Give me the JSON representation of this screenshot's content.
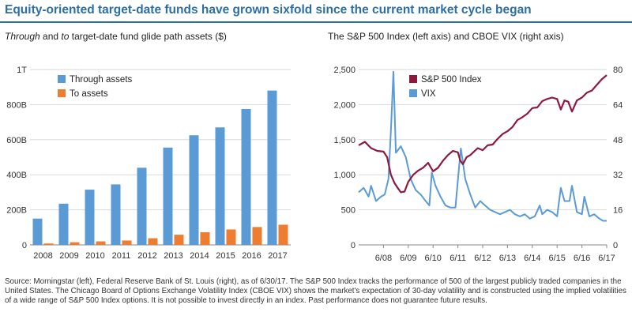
{
  "title": "Equity-oriented target-date funds have grown sixfold since the current market cycle began",
  "left_subtitle": {
    "em1": "Through",
    "mid": " and ",
    "em2": "to",
    "rest": " target-date fund glide path assets ($)"
  },
  "right_subtitle": "The S&P 500 Index (left axis) and CBOE VIX (right axis)",
  "footnote": "Source: Morningstar (left), Federal Reserve Bank of St. Louis (right), as of 6/30/17. The S&P 500 Index tracks the performance of 500 of the largest publicly traded companies in the United States. The Chicago Board of Options Exchange Volatility Index (CBOE VIX) shows the market's expectation of 30-day volatility and is constructed using the implied volatilities of a wide range of S&P 500 Index options. It is not possible to invest directly in an index. Past performance does not guarantee future results.",
  "colors": {
    "through": "#5b9bd5",
    "to": "#ed7d31",
    "sp500": "#8b1a3e",
    "vix": "#5b9bd5",
    "title": "#2d6ea3"
  },
  "chart_data": [
    {
      "type": "bar",
      "categories": [
        "2008",
        "2009",
        "2010",
        "2011",
        "2012",
        "2013",
        "2014",
        "2015",
        "2016",
        "2017"
      ],
      "series": [
        {
          "name": "Through assets",
          "values": [
            150,
            235,
            315,
            345,
            440,
            555,
            625,
            670,
            775,
            880
          ]
        },
        {
          "name": "To assets",
          "values": [
            8,
            15,
            20,
            25,
            38,
            58,
            72,
            88,
            102,
            115
          ]
        }
      ],
      "ylim": [
        0,
        1000
      ],
      "yticks": [
        0,
        200,
        400,
        600,
        800,
        1000
      ],
      "ytick_labels": [
        "0",
        "200B",
        "400B",
        "600B",
        "800B",
        "1T"
      ],
      "legend": "top-left"
    },
    {
      "type": "line",
      "x_range": [
        2007.5,
        2017.5
      ],
      "xticks": [
        2008.5,
        2009.5,
        2010.5,
        2011.5,
        2012.5,
        2013.5,
        2014.5,
        2015.5,
        2016.5,
        2017.5
      ],
      "xtick_labels": [
        "6/08",
        "6/09",
        "6/10",
        "6/11",
        "6/12",
        "6/13",
        "6/14",
        "6/15",
        "6/16",
        "6/17"
      ],
      "left_axis": {
        "ylim": [
          0,
          2500
        ],
        "yticks": [
          0,
          500,
          1000,
          1500,
          2000,
          2500
        ],
        "ytick_labels": [
          "0",
          "500",
          "1,000",
          "1,500",
          "2,000",
          "2,500"
        ]
      },
      "right_axis": {
        "ylim": [
          0,
          80
        ],
        "yticks": [
          0,
          16,
          32,
          48,
          64,
          80
        ],
        "ytick_labels": [
          "0",
          "16",
          "32",
          "48",
          "64",
          "80"
        ]
      },
      "legend": "top-center",
      "series": [
        {
          "name": "S&P 500 Index",
          "axis": "left",
          "x": [
            2007.5,
            2007.75,
            2008.0,
            2008.25,
            2008.5,
            2008.65,
            2008.8,
            2008.95,
            2009.1,
            2009.2,
            2009.35,
            2009.5,
            2009.7,
            2009.9,
            2010.1,
            2010.3,
            2010.5,
            2010.7,
            2010.9,
            2011.1,
            2011.3,
            2011.5,
            2011.6,
            2011.7,
            2011.85,
            2012.0,
            2012.3,
            2012.5,
            2012.7,
            2012.9,
            2013.1,
            2013.3,
            2013.5,
            2013.7,
            2013.9,
            2014.1,
            2014.3,
            2014.5,
            2014.7,
            2014.9,
            2015.1,
            2015.3,
            2015.5,
            2015.65,
            2015.8,
            2015.95,
            2016.1,
            2016.3,
            2016.5,
            2016.7,
            2016.9,
            2017.1,
            2017.3,
            2017.5
          ],
          "y": [
            1420,
            1470,
            1380,
            1340,
            1330,
            1250,
            1000,
            880,
            800,
            750,
            760,
            900,
            1000,
            1060,
            1100,
            1170,
            1050,
            1100,
            1200,
            1280,
            1340,
            1320,
            1200,
            1150,
            1250,
            1280,
            1380,
            1350,
            1420,
            1430,
            1510,
            1580,
            1620,
            1680,
            1780,
            1820,
            1870,
            1950,
            1960,
            2050,
            2080,
            2100,
            2080,
            1930,
            2060,
            2040,
            1900,
            2060,
            2100,
            2170,
            2200,
            2280,
            2360,
            2420
          ]
        },
        {
          "name": "VIX",
          "axis": "right",
          "x": [
            2007.5,
            2007.7,
            2007.9,
            2008.0,
            2008.2,
            2008.4,
            2008.55,
            2008.7,
            2008.8,
            2008.9,
            2009.0,
            2009.2,
            2009.4,
            2009.6,
            2009.8,
            2010.0,
            2010.2,
            2010.35,
            2010.45,
            2010.6,
            2010.8,
            2011.0,
            2011.2,
            2011.4,
            2011.55,
            2011.62,
            2011.8,
            2012.0,
            2012.2,
            2012.4,
            2012.6,
            2012.8,
            2013.0,
            2013.2,
            2013.4,
            2013.6,
            2013.8,
            2014.0,
            2014.2,
            2014.4,
            2014.6,
            2014.8,
            2014.9,
            2015.1,
            2015.3,
            2015.5,
            2015.65,
            2015.8,
            2016.0,
            2016.1,
            2016.3,
            2016.5,
            2016.6,
            2016.8,
            2017.0,
            2017.2,
            2017.35,
            2017.5
          ],
          "y": [
            24,
            26,
            22,
            27,
            20,
            22,
            23,
            30,
            52,
            79,
            42,
            45,
            40,
            30,
            25,
            23,
            20,
            18,
            33,
            27,
            22,
            18,
            17,
            17,
            36,
            44,
            30,
            23,
            17,
            20,
            18,
            16,
            15,
            14,
            15,
            16,
            14,
            13,
            14,
            12,
            13,
            18,
            14,
            16,
            15,
            13,
            26,
            20,
            20,
            27,
            15,
            14,
            22,
            13,
            14,
            12,
            11,
            11
          ]
        }
      ]
    }
  ]
}
